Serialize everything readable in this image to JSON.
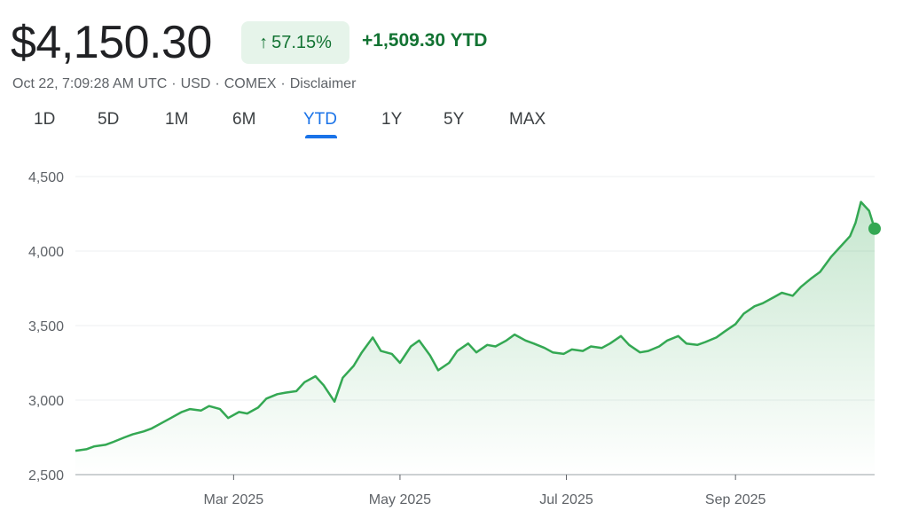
{
  "header": {
    "price": "$4,150.30",
    "change_percent": "57.15%",
    "change_abs": "+1,509.30 YTD",
    "meta_date": "Oct 22, 7:09:28 AM UTC",
    "meta_currency": "USD",
    "meta_exchange": "COMEX",
    "meta_disclaimer": "Disclaimer",
    "up_color": "#137333",
    "badge_bg": "#e6f4ea",
    "up_arrow_icon": "arrow-up-icon"
  },
  "tabs": [
    {
      "label": "1D"
    },
    {
      "label": "5D"
    },
    {
      "label": "1M"
    },
    {
      "label": "6M"
    },
    {
      "label": "YTD",
      "active": true
    },
    {
      "label": "1Y"
    },
    {
      "label": "5Y"
    },
    {
      "label": "MAX"
    }
  ],
  "chart_data": {
    "type": "area",
    "series": [
      {
        "x": [
          "2025-01-02",
          "2025-01-06",
          "2025-01-09",
          "2025-01-13",
          "2025-01-16",
          "2025-01-20",
          "2025-01-23",
          "2025-01-27",
          "2025-01-30",
          "2025-02-03",
          "2025-02-06",
          "2025-02-10",
          "2025-02-13",
          "2025-02-17",
          "2025-02-20",
          "2025-02-24",
          "2025-02-27",
          "2025-03-03",
          "2025-03-06",
          "2025-03-10",
          "2025-03-13",
          "2025-03-17",
          "2025-03-20",
          "2025-03-24",
          "2025-03-27",
          "2025-03-31",
          "2025-04-03",
          "2025-04-07",
          "2025-04-10",
          "2025-04-14",
          "2025-04-17",
          "2025-04-21",
          "2025-04-24",
          "2025-04-28",
          "2025-05-01",
          "2025-05-05",
          "2025-05-08",
          "2025-05-12",
          "2025-05-15",
          "2025-05-19",
          "2025-05-22",
          "2025-05-26",
          "2025-05-29",
          "2025-06-02",
          "2025-06-05",
          "2025-06-09",
          "2025-06-12",
          "2025-06-16",
          "2025-06-19",
          "2025-06-23",
          "2025-06-26",
          "2025-06-30",
          "2025-07-03",
          "2025-07-07",
          "2025-07-10",
          "2025-07-14",
          "2025-07-17",
          "2025-07-21",
          "2025-07-24",
          "2025-07-28",
          "2025-07-31",
          "2025-08-04",
          "2025-08-07",
          "2025-08-11",
          "2025-08-14",
          "2025-08-18",
          "2025-08-21",
          "2025-08-25",
          "2025-08-28",
          "2025-09-01",
          "2025-09-04",
          "2025-09-08",
          "2025-09-11",
          "2025-09-15",
          "2025-09-18",
          "2025-09-22",
          "2025-09-25",
          "2025-09-29",
          "2025-10-02",
          "2025-10-06",
          "2025-10-09",
          "2025-10-13",
          "2025-10-15",
          "2025-10-17",
          "2025-10-20",
          "2025-10-22"
        ],
        "values": [
          2660,
          2670,
          2690,
          2700,
          2720,
          2750,
          2770,
          2790,
          2810,
          2850,
          2880,
          2920,
          2940,
          2930,
          2960,
          2940,
          2880,
          2920,
          2910,
          2950,
          3010,
          3040,
          3050,
          3060,
          3120,
          3160,
          3100,
          2990,
          3150,
          3230,
          3320,
          3420,
          3330,
          3310,
          3250,
          3360,
          3400,
          3300,
          3200,
          3250,
          3330,
          3380,
          3320,
          3370,
          3360,
          3400,
          3440,
          3400,
          3380,
          3350,
          3320,
          3310,
          3340,
          3330,
          3360,
          3350,
          3380,
          3430,
          3370,
          3320,
          3330,
          3360,
          3400,
          3430,
          3380,
          3370,
          3390,
          3420,
          3460,
          3510,
          3580,
          3630,
          3650,
          3690,
          3720,
          3700,
          3760,
          3820,
          3860,
          3960,
          4020,
          4100,
          4190,
          4330,
          4270,
          4150.3
        ]
      }
    ],
    "xtick_labels": [
      "Mar 2025",
      "May 2025",
      "Jul 2025",
      "Sep 2025"
    ],
    "xtick_dates": [
      "2025-03-01",
      "2025-05-01",
      "2025-07-01",
      "2025-09-01"
    ],
    "ytick_labels": [
      "4,500",
      "4,000",
      "3,500",
      "3,000",
      "2,500"
    ],
    "yticks": [
      4500,
      4000,
      3500,
      3000,
      2500
    ],
    "ylim": [
      2500,
      4500
    ],
    "xlim": [
      "2025-01-02",
      "2025-10-22"
    ],
    "grid": true,
    "line_color": "#34a853",
    "area_color": "#34a853"
  }
}
